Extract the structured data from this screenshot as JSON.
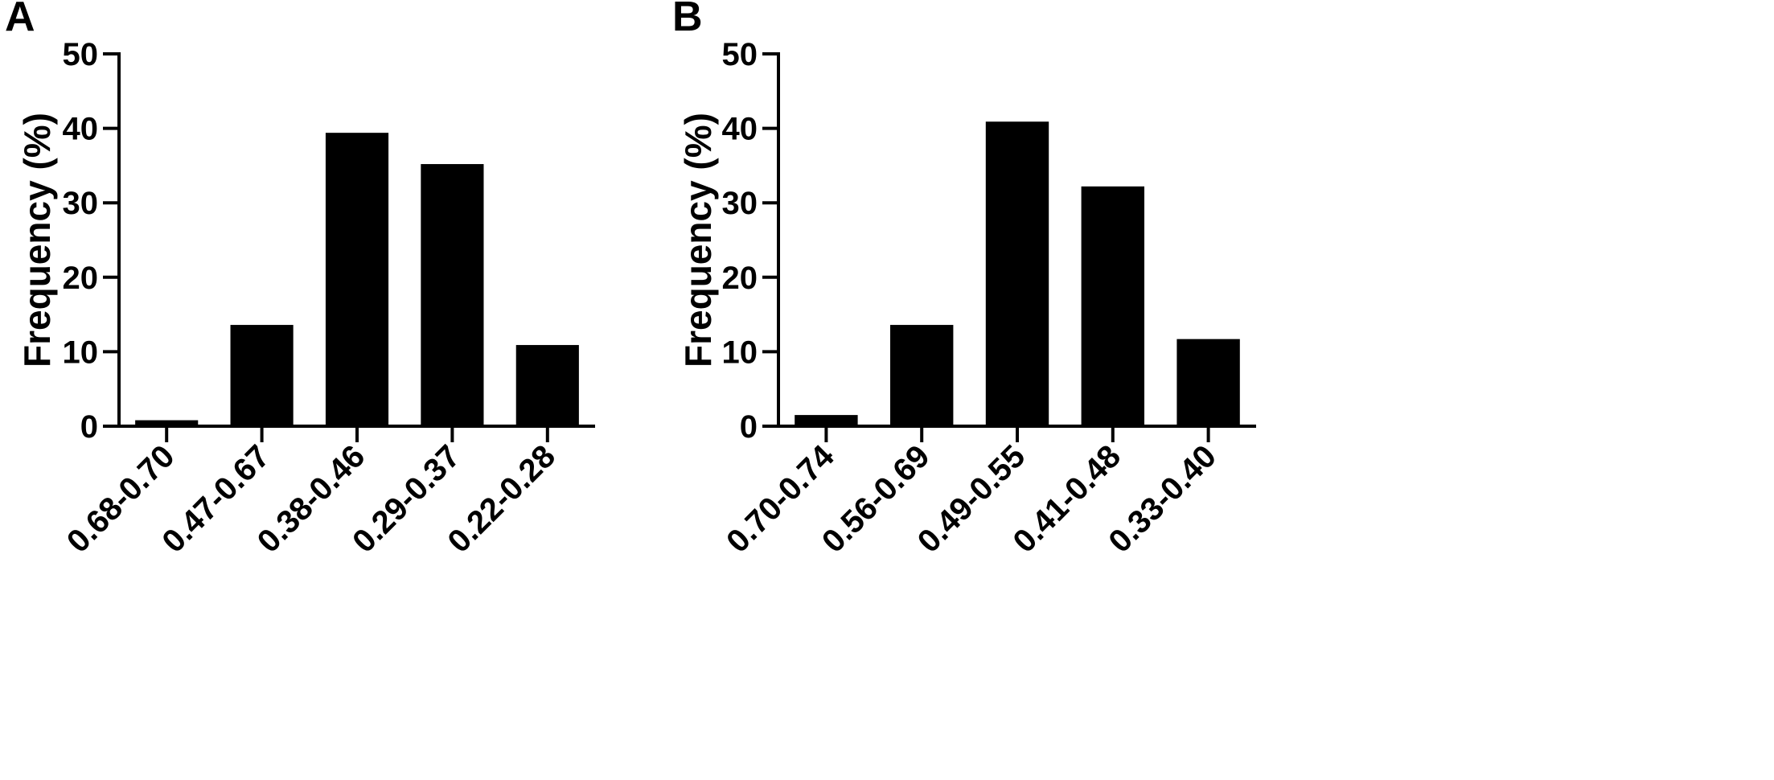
{
  "chart_data": [
    {
      "panel": "A",
      "type": "bar",
      "categories": [
        "0.68-0.70",
        "0.47-0.67",
        "0.38-0.46",
        "0.29-0.37",
        "0.22-0.28"
      ],
      "values": [
        0.8,
        13.6,
        39.4,
        35.2,
        10.9
      ],
      "ylabel": "Frequency (%)",
      "xlabel": "",
      "ylim": [
        0,
        50
      ],
      "yticks": [
        0,
        10,
        20,
        30,
        40,
        50
      ],
      "grid": false,
      "bar_color": "#000000"
    },
    {
      "panel": "B",
      "type": "bar",
      "categories": [
        "0.70-0.74",
        "0.56-0.69",
        "0.49-0.55",
        "0.41-0.48",
        "0.33-0.40"
      ],
      "values": [
        1.5,
        13.6,
        40.9,
        32.2,
        11.7
      ],
      "ylabel": "Frequency (%)",
      "xlabel": "",
      "ylim": [
        0,
        50
      ],
      "yticks": [
        0,
        10,
        20,
        30,
        40,
        50
      ],
      "grid": false,
      "bar_color": "#000000"
    }
  ]
}
